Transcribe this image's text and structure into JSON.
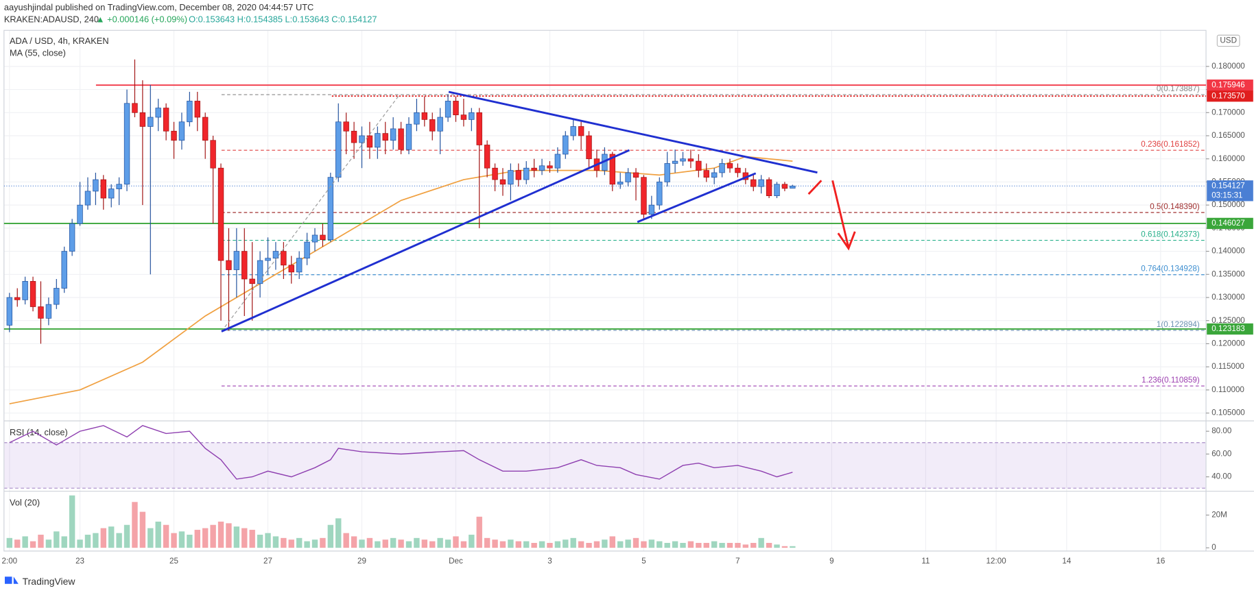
{
  "header": {
    "byline": "aayushjindal published on TradingView.com, December 08, 2020 04:44:57 UTC",
    "symbol": "KRAKEN:ADAUSD, 240",
    "change": "▲ +0.000146 (+0.09%)",
    "ohlc": "O:0.153643 H:0.154385 L:0.153643 C:0.154127"
  },
  "footer": "TradingView",
  "chart_data": {
    "type": "candlestick",
    "title": "ADA / USD, 4h, KRAKEN",
    "currency": "USD",
    "up_color": "#5e9ee8",
    "down_color": "#f0262b",
    "open": [
      0.124,
      0.13,
      0.1295,
      0.1335,
      0.128,
      0.1255,
      0.1285,
      0.132,
      0.14,
      0.146,
      0.15,
      0.153,
      0.1555,
      0.1515,
      0.1535,
      0.1545,
      0.172,
      0.17,
      0.167,
      0.169,
      0.171,
      0.166,
      0.164,
      0.168,
      0.1725,
      0.169,
      0.164,
      0.158,
      0.138,
      0.136,
      0.14,
      0.134,
      0.133,
      0.138,
      0.1385,
      0.14,
      0.137,
      0.1355,
      0.1385,
      0.142,
      0.1435,
      0.1425,
      0.156,
      0.168,
      0.166,
      0.1635,
      0.165,
      0.1625,
      0.1655,
      0.164,
      0.1665,
      0.162,
      0.1675,
      0.17,
      0.1685,
      0.166,
      0.169,
      0.1725,
      0.1695,
      0.1685,
      0.17,
      0.163,
      0.158,
      0.1555,
      0.1545,
      0.1575,
      0.1555,
      0.158,
      0.1575,
      0.1585,
      0.158,
      0.161,
      0.165,
      0.167,
      0.165,
      0.16,
      0.1575,
      0.161,
      0.1545,
      0.155,
      0.157,
      0.156,
      0.148,
      0.15,
      0.155,
      0.159,
      0.1595,
      0.16,
      0.1595,
      0.1575,
      0.156,
      0.157,
      0.159,
      0.158,
      0.157,
      0.1555,
      0.154,
      0.1555,
      0.152,
      0.1545,
      0.153643
    ],
    "high": [
      0.131,
      0.132,
      0.1345,
      0.1345,
      0.1335,
      0.13,
      0.134,
      0.141,
      0.147,
      0.155,
      0.156,
      0.157,
      0.1565,
      0.1545,
      0.156,
      0.175,
      0.1815,
      0.177,
      0.176,
      0.173,
      0.172,
      0.168,
      0.17,
      0.1745,
      0.1745,
      0.17,
      0.165,
      0.159,
      0.145,
      0.145,
      0.145,
      0.142,
      0.14,
      0.143,
      0.142,
      0.142,
      0.139,
      0.14,
      0.144,
      0.145,
      0.146,
      0.157,
      0.172,
      0.17,
      0.168,
      0.167,
      0.168,
      0.167,
      0.168,
      0.169,
      0.168,
      0.169,
      0.173,
      0.1735,
      0.17,
      0.171,
      0.174,
      0.1735,
      0.173,
      0.171,
      0.171,
      0.164,
      0.159,
      0.158,
      0.159,
      0.159,
      0.1595,
      0.16,
      0.16,
      0.1595,
      0.1625,
      0.166,
      0.1685,
      0.168,
      0.166,
      0.162,
      0.1625,
      0.1615,
      0.157,
      0.158,
      0.158,
      0.1565,
      0.152,
      0.156,
      0.1615,
      0.162,
      0.1615,
      0.162,
      0.161,
      0.159,
      0.158,
      0.16,
      0.16,
      0.159,
      0.158,
      0.1565,
      0.1565,
      0.156,
      0.155,
      0.155,
      0.154385
    ],
    "low": [
      0.1225,
      0.128,
      0.1285,
      0.127,
      0.12,
      0.124,
      0.1275,
      0.131,
      0.139,
      0.1455,
      0.149,
      0.15,
      0.149,
      0.1495,
      0.15,
      0.153,
      0.169,
      0.15,
      0.135,
      0.166,
      0.164,
      0.16,
      0.162,
      0.167,
      0.166,
      0.16,
      0.146,
      0.125,
      0.1228,
      0.13,
      0.126,
      0.125,
      0.13,
      0.135,
      0.136,
      0.134,
      0.133,
      0.134,
      0.137,
      0.14,
      0.141,
      0.142,
      0.155,
      0.161,
      0.16,
      0.158,
      0.16,
      0.16,
      0.161,
      0.162,
      0.161,
      0.161,
      0.166,
      0.167,
      0.164,
      0.161,
      0.168,
      0.168,
      0.167,
      0.166,
      0.145,
      0.156,
      0.153,
      0.152,
      0.151,
      0.154,
      0.1545,
      0.156,
      0.1565,
      0.157,
      0.157,
      0.16,
      0.164,
      0.162,
      0.158,
      0.156,
      0.1565,
      0.153,
      0.1535,
      0.154,
      0.151,
      0.147,
      0.147,
      0.149,
      0.154,
      0.157,
      0.1585,
      0.158,
      0.156,
      0.155,
      0.1545,
      0.156,
      0.157,
      0.156,
      0.1545,
      0.153,
      0.1525,
      0.1515,
      0.1515,
      0.153,
      0.153643
    ],
    "close": [
      0.13,
      0.1295,
      0.1335,
      0.128,
      0.1255,
      0.1285,
      0.132,
      0.14,
      0.146,
      0.15,
      0.153,
      0.1555,
      0.1515,
      0.1535,
      0.1545,
      0.172,
      0.17,
      0.167,
      0.169,
      0.171,
      0.166,
      0.164,
      0.168,
      0.1725,
      0.169,
      0.164,
      0.158,
      0.138,
      0.136,
      0.14,
      0.134,
      0.133,
      0.138,
      0.1385,
      0.14,
      0.137,
      0.1355,
      0.1385,
      0.142,
      0.1435,
      0.1425,
      0.156,
      0.168,
      0.166,
      0.1635,
      0.165,
      0.1625,
      0.1655,
      0.164,
      0.1665,
      0.162,
      0.1675,
      0.17,
      0.1685,
      0.166,
      0.169,
      0.1725,
      0.1695,
      0.1685,
      0.17,
      0.163,
      0.158,
      0.1555,
      0.1545,
      0.1575,
      0.1555,
      0.158,
      0.1575,
      0.1585,
      0.158,
      0.161,
      0.165,
      0.167,
      0.165,
      0.16,
      0.1575,
      0.161,
      0.1545,
      0.155,
      0.157,
      0.156,
      0.148,
      0.15,
      0.155,
      0.159,
      0.1595,
      0.16,
      0.1595,
      0.1575,
      0.156,
      0.157,
      0.159,
      0.158,
      0.157,
      0.1555,
      0.154,
      0.1555,
      0.152,
      0.1545,
      0.1536,
      0.154127
    ],
    "ma": {
      "name": "MA (55, close)",
      "color": "#f0a040",
      "x": [
        0,
        9,
        17,
        25,
        33,
        41,
        50,
        58,
        65,
        75,
        83,
        90,
        94,
        100
      ],
      "values": [
        0.107,
        0.11,
        0.116,
        0.126,
        0.134,
        0.142,
        0.151,
        0.1555,
        0.1575,
        0.1575,
        0.1565,
        0.158,
        0.1605,
        0.1595
      ]
    },
    "xlim": [
      -0.7,
      152.8
    ],
    "xticks": [
      {
        "value": 0,
        "label": "2:00"
      },
      {
        "value": 9,
        "label": "23"
      },
      {
        "value": 21,
        "label": "25"
      },
      {
        "value": 33,
        "label": "27"
      },
      {
        "value": 45,
        "label": "29"
      },
      {
        "value": 57,
        "label": "Dec"
      },
      {
        "value": 69,
        "label": "3"
      },
      {
        "value": 81,
        "label": "5"
      },
      {
        "value": 93,
        "label": "7"
      },
      {
        "value": 105,
        "label": "9"
      },
      {
        "value": 117,
        "label": "11"
      },
      {
        "value": 126,
        "label": "12:00"
      },
      {
        "value": 135,
        "label": "14"
      },
      {
        "value": 147,
        "label": "16"
      }
    ],
    "ylim": [
      0.1033,
      0.1878
    ],
    "yticks": [
      {
        "value": 0.105,
        "label": "0.105000"
      },
      {
        "value": 0.11,
        "label": "0.110000"
      },
      {
        "value": 0.115,
        "label": "0.115000"
      },
      {
        "value": 0.12,
        "label": "0.120000"
      },
      {
        "value": 0.125,
        "label": "0.125000"
      },
      {
        "value": 0.13,
        "label": "0.130000"
      },
      {
        "value": 0.135,
        "label": "0.135000"
      },
      {
        "value": 0.14,
        "label": "0.140000"
      },
      {
        "value": 0.145,
        "label": "0.145000"
      },
      {
        "value": 0.15,
        "label": "0.150000"
      },
      {
        "value": 0.155,
        "label": "0.155000"
      },
      {
        "value": 0.16,
        "label": "0.160000"
      },
      {
        "value": 0.165,
        "label": "0.165000"
      },
      {
        "value": 0.17,
        "label": "0.170000"
      },
      {
        "value": 0.175,
        "label": "0.175000"
      },
      {
        "value": 0.18,
        "label": "0.180000"
      }
    ],
    "grid": true,
    "levels": [
      {
        "value": 0.175946,
        "color": "#f23645"
      },
      {
        "value": 0.17357,
        "label": "0.173570",
        "color": "#e01e1e"
      },
      {
        "value": 0.146027,
        "color": "#3aa63a"
      },
      {
        "value": 0.123183,
        "color": "#3aa63a"
      }
    ],
    "current": {
      "value": 0.154127,
      "countdown": "03:15:31",
      "color": "#4a7fd4"
    },
    "fib_levels": [
      {
        "value": 0.173887,
        "label": "0(0.173887)",
        "color": "#888888"
      },
      {
        "value": 0.161852,
        "label": "0.236(0.161852)",
        "color": "#e04040"
      },
      {
        "value": 0.14839,
        "label": "0.5(0.148390)",
        "color": "#a03030"
      },
      {
        "value": 0.142373,
        "label": "0.618(0.142373)",
        "color": "#26b08a"
      },
      {
        "value": 0.134928,
        "label": "0.764(0.134928)",
        "color": "#3f8fd0"
      },
      {
        "value": 0.122894,
        "label": "1(0.122894)",
        "color": "#6a8fb0"
      },
      {
        "value": 0.110859,
        "label": "1.236(0.110859)",
        "color": "#9c3fb0"
      }
    ],
    "rsi": {
      "name": "RSI (14, close)",
      "color": "#8e3fb0",
      "x": [
        0,
        3,
        6,
        9,
        12,
        15,
        17,
        20,
        23,
        25,
        27,
        29,
        31,
        33,
        36,
        39,
        41,
        42,
        45,
        50,
        55,
        58,
        60,
        63,
        66,
        70,
        73,
        75,
        78,
        80,
        83,
        86,
        88,
        90,
        93,
        96,
        98,
        100
      ],
      "values": [
        70,
        80,
        68,
        80,
        85,
        75,
        85,
        78,
        80,
        65,
        55,
        38,
        40,
        45,
        40,
        48,
        55,
        65,
        62,
        60,
        62,
        63,
        55,
        45,
        45,
        48,
        55,
        50,
        48,
        42,
        38,
        50,
        52,
        48,
        50,
        45,
        40,
        44
      ],
      "ylim": [
        27.4,
        89.1
      ],
      "band": [
        30,
        70
      ],
      "yticks": [
        {
          "value": 40,
          "label": "40.00"
        },
        {
          "value": 60,
          "label": "60.00"
        },
        {
          "value": 80,
          "label": "80.00"
        }
      ]
    },
    "volume": {
      "name": "Vol (20)",
      "up_color": "#9fd6bf",
      "down_color": "#f4a3a8",
      "values": [
        6000000,
        5000000,
        7000000,
        4000000,
        8000000,
        5000000,
        10000000,
        7000000,
        32000000,
        5000000,
        8000000,
        9000000,
        12000000,
        13000000,
        9000000,
        14000000,
        28000000,
        22000000,
        12000000,
        16000000,
        14000000,
        9000000,
        10000000,
        8000000,
        11000000,
        12000000,
        14000000,
        16000000,
        15000000,
        13000000,
        12000000,
        11000000,
        8000000,
        9000000,
        7000000,
        6000000,
        5000000,
        6000000,
        4000000,
        5000000,
        6000000,
        14000000,
        18000000,
        9000000,
        7000000,
        5000000,
        6000000,
        4000000,
        5000000,
        6000000,
        5000000,
        4000000,
        6000000,
        5000000,
        4000000,
        6000000,
        5000000,
        7000000,
        4000000,
        8000000,
        19000000,
        6000000,
        5000000,
        4000000,
        5000000,
        4000000,
        4000000,
        3000000,
        4000000,
        3000000,
        4000000,
        5000000,
        6000000,
        4000000,
        3000000,
        4000000,
        5000000,
        7000000,
        4000000,
        5000000,
        6000000,
        4000000,
        5000000,
        4000000,
        3000000,
        4000000,
        3000000,
        4000000,
        3000000,
        3000000,
        4000000,
        3000000,
        3000000,
        3000000,
        2000000,
        3000000,
        6000000,
        3000000,
        2000000,
        1000000,
        1000000
      ],
      "ylim": [
        -2000000,
        34600000
      ],
      "yticks": [
        0,
        {
          "value": 20000000,
          "label": "20M"
        }
      ]
    }
  }
}
